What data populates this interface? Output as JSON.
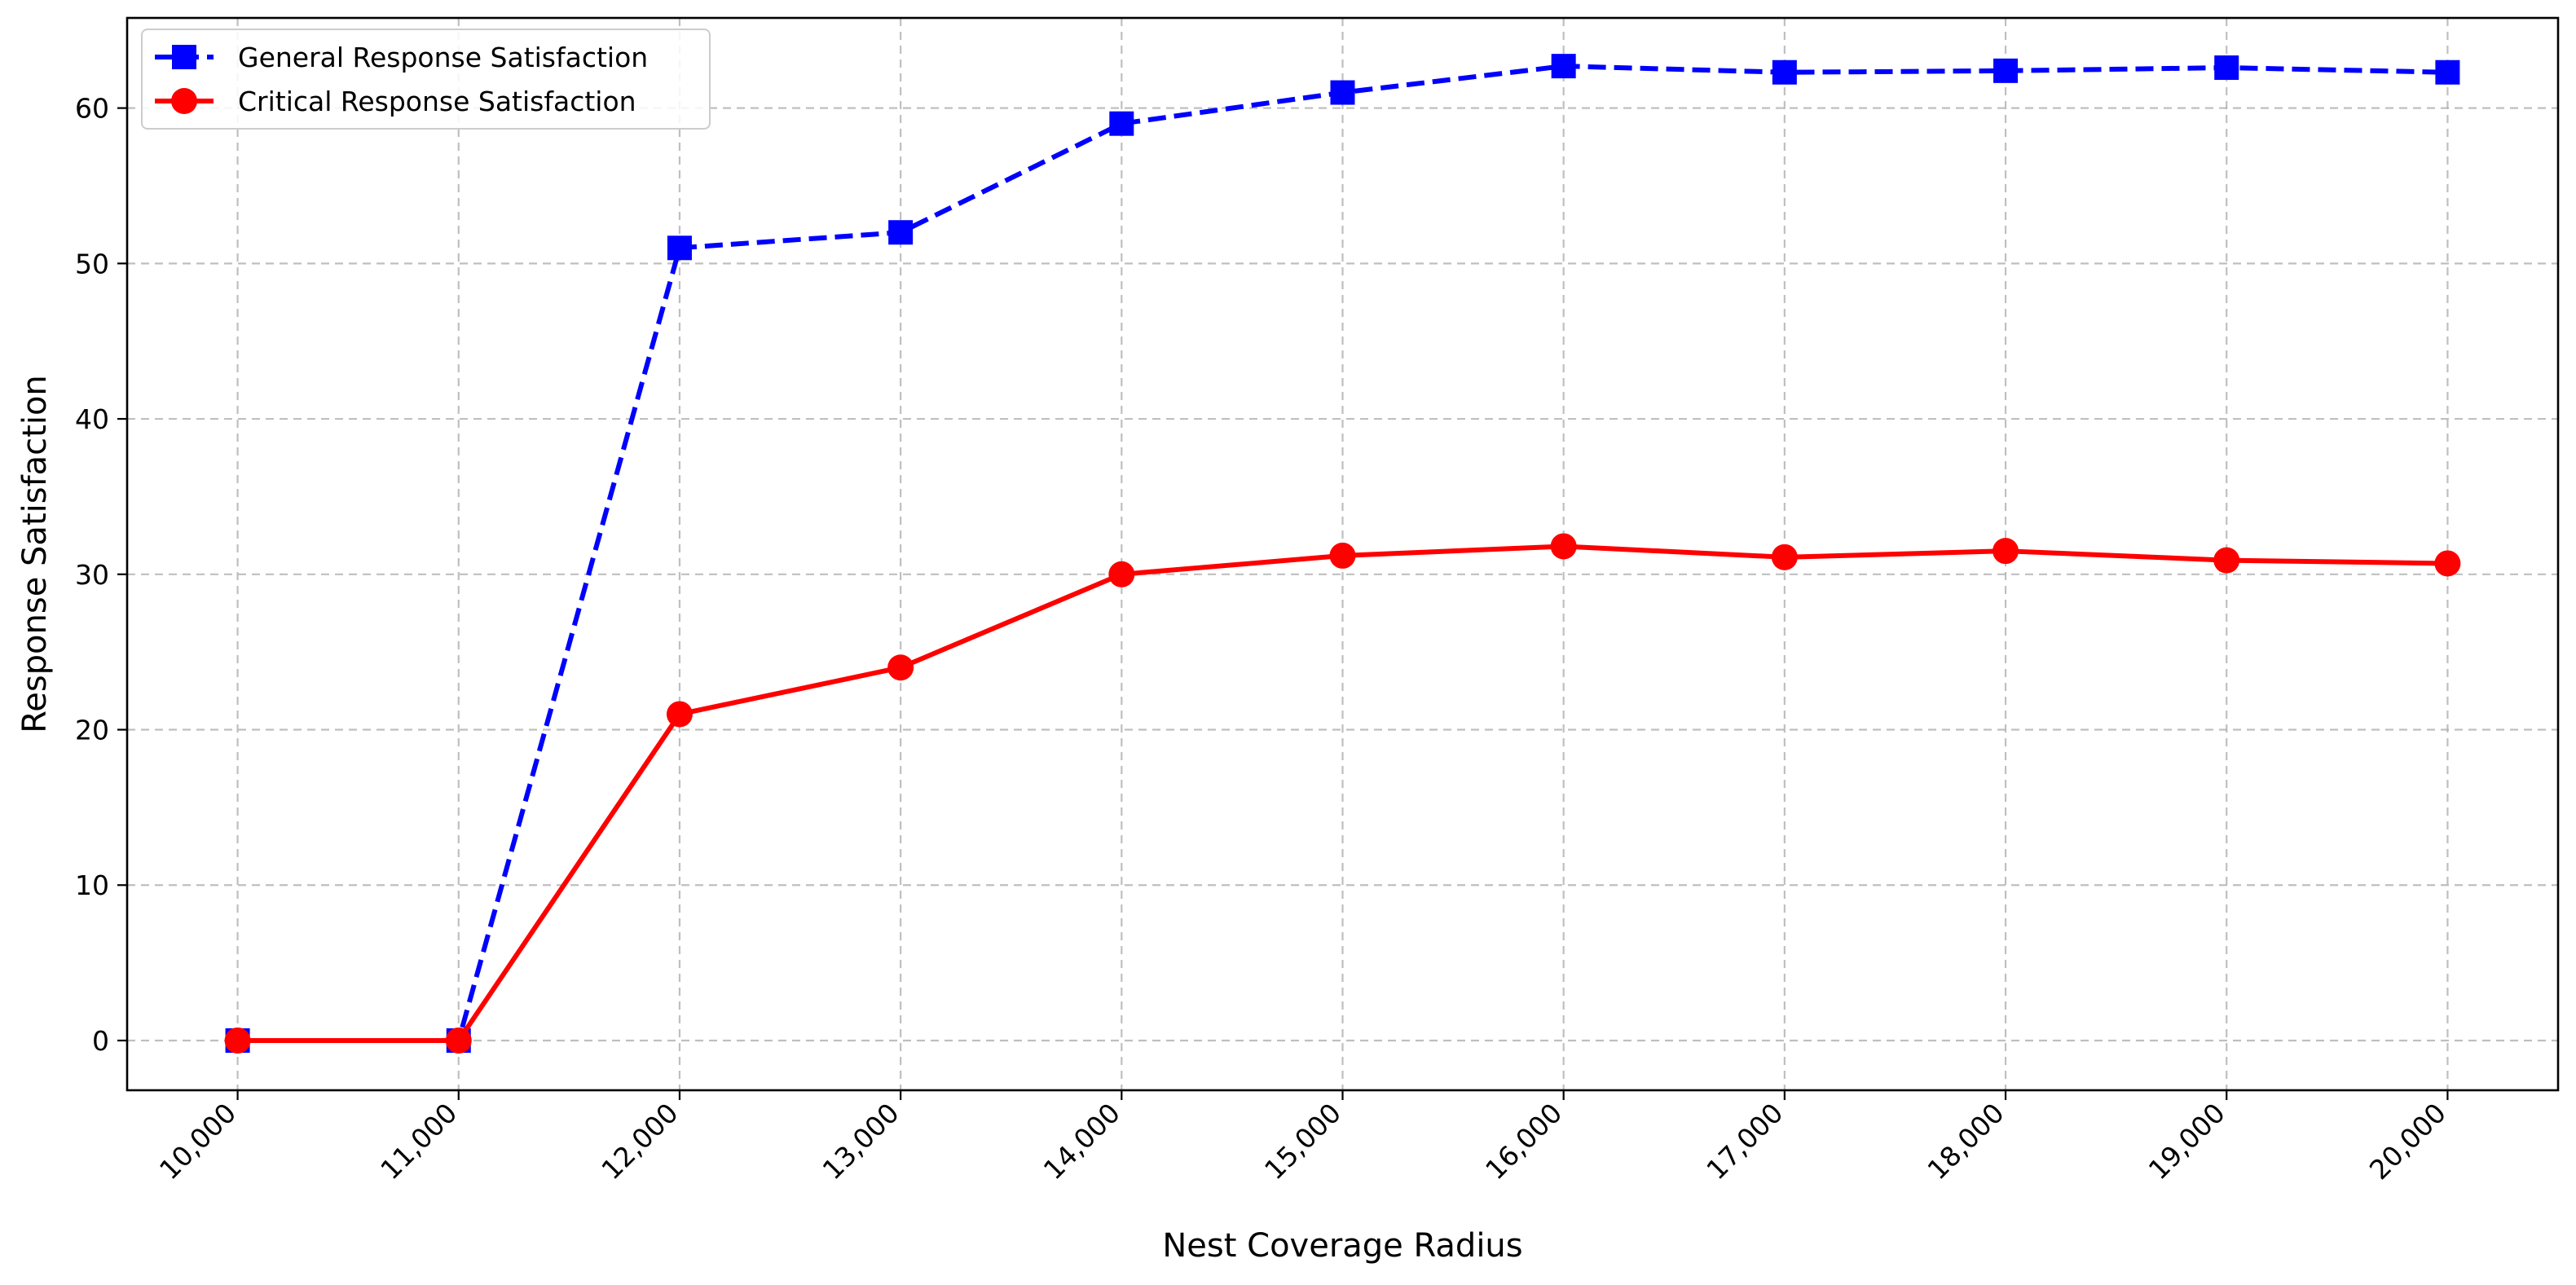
{
  "chart_data": {
    "type": "line",
    "xlabel": "Nest Coverage Radius",
    "ylabel": "Response Satisfaction",
    "x": [
      10000,
      11000,
      12000,
      13000,
      14000,
      15000,
      16000,
      17000,
      18000,
      19000,
      20000
    ],
    "x_tick_labels": [
      "10,000",
      "11,000",
      "12,000",
      "13,000",
      "14,000",
      "15,000",
      "16,000",
      "17,000",
      "18,000",
      "19,000",
      "20,000"
    ],
    "y_ticks": [
      0,
      10,
      20,
      30,
      40,
      50,
      60
    ],
    "xlim": [
      9500,
      20500
    ],
    "ylim": [
      -3.2,
      65.8
    ],
    "grid": true,
    "legend_position": "top-left",
    "series": [
      {
        "name": "General Response Satisfaction",
        "color": "#0000ff",
        "marker": "square",
        "line_style": "dashed",
        "values": [
          0,
          0,
          51.0,
          52.0,
          59.0,
          61.0,
          62.7,
          62.3,
          62.4,
          62.6,
          62.3
        ]
      },
      {
        "name": "Critical Response Satisfaction",
        "color": "#ff0000",
        "marker": "circle",
        "line_style": "solid",
        "values": [
          0,
          0,
          21.0,
          24.0,
          30.0,
          31.2,
          31.8,
          31.1,
          31.5,
          30.9,
          30.7
        ]
      }
    ]
  }
}
